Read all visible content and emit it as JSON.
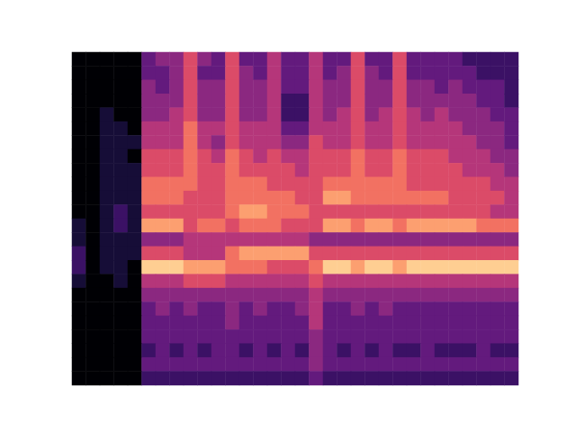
{
  "chart_data": {
    "type": "heatmap",
    "tick_labels": false,
    "grid": false,
    "clim": [
      0,
      10
    ],
    "cells": [
      [
        0,
        0,
        0,
        0,
        0,
        3,
        4,
        4,
        6,
        4,
        3,
        6,
        3,
        3,
        5,
        3,
        3,
        5,
        3,
        3,
        6,
        3,
        3,
        6,
        3,
        3,
        3,
        3,
        2,
        2,
        2,
        2
      ],
      [
        0,
        0,
        0,
        0,
        0,
        3,
        3,
        4,
        6,
        3,
        3,
        6,
        4,
        3,
        5,
        3,
        3,
        5,
        3,
        4,
        6,
        4,
        3,
        6,
        3,
        3,
        3,
        3,
        3,
        2,
        2,
        2
      ],
      [
        0,
        0,
        0,
        0,
        0,
        4,
        3,
        4,
        6,
        4,
        4,
        6,
        4,
        4,
        5,
        3,
        3,
        5,
        4,
        4,
        6,
        4,
        4,
        6,
        4,
        4,
        3,
        4,
        3,
        3,
        3,
        2
      ],
      [
        0,
        0,
        0,
        0,
        0,
        4,
        4,
        4,
        6,
        4,
        4,
        6,
        4,
        4,
        5,
        2,
        2,
        5,
        4,
        4,
        6,
        4,
        4,
        6,
        4,
        4,
        4,
        4,
        4,
        3,
        3,
        2
      ],
      [
        0,
        0,
        1,
        0,
        0,
        4,
        4,
        5,
        6,
        4,
        4,
        6,
        4,
        4,
        5,
        2,
        2,
        5,
        4,
        5,
        6,
        4,
        5,
        6,
        5,
        4,
        5,
        4,
        4,
        4,
        3,
        3
      ],
      [
        0,
        0,
        1,
        1,
        0,
        5,
        5,
        5,
        7,
        5,
        5,
        6,
        5,
        5,
        5,
        3,
        3,
        5,
        5,
        5,
        6,
        5,
        5,
        6,
        5,
        5,
        5,
        5,
        4,
        4,
        4,
        3
      ],
      [
        0,
        0,
        1,
        1,
        1,
        5,
        5,
        5,
        7,
        5,
        4,
        6,
        5,
        5,
        5,
        4,
        4,
        6,
        5,
        5,
        6,
        5,
        5,
        6,
        5,
        5,
        5,
        5,
        5,
        4,
        4,
        3
      ],
      [
        0,
        0,
        1,
        1,
        0,
        6,
        6,
        6,
        7,
        6,
        5,
        7,
        6,
        5,
        6,
        5,
        5,
        6,
        6,
        6,
        7,
        6,
        6,
        7,
        6,
        6,
        6,
        5,
        5,
        5,
        4,
        4
      ],
      [
        0,
        0,
        1,
        1,
        1,
        6,
        6,
        6,
        7,
        6,
        6,
        7,
        6,
        6,
        6,
        6,
        5,
        6,
        6,
        6,
        7,
        6,
        6,
        7,
        6,
        6,
        6,
        6,
        5,
        5,
        5,
        4
      ],
      [
        0,
        0,
        1,
        1,
        1,
        7,
        7,
        7,
        7,
        6,
        6,
        7,
        7,
        7,
        6,
        6,
        6,
        6,
        7,
        7,
        7,
        7,
        7,
        7,
        6,
        6,
        6,
        6,
        6,
        6,
        5,
        5
      ],
      [
        0,
        0,
        1,
        1,
        1,
        7,
        7,
        7,
        6,
        6,
        6,
        7,
        7,
        7,
        7,
        7,
        6,
        6,
        8,
        8,
        7,
        7,
        7,
        7,
        7,
        7,
        7,
        6,
        6,
        6,
        6,
        5
      ],
      [
        0,
        0,
        1,
        2,
        1,
        6,
        6,
        6,
        6,
        6,
        6,
        7,
        8,
        8,
        7,
        7,
        7,
        6,
        6,
        6,
        6,
        6,
        6,
        6,
        6,
        6,
        6,
        6,
        6,
        6,
        5,
        5
      ],
      [
        1,
        0,
        1,
        2,
        1,
        8,
        8,
        8,
        6,
        7,
        7,
        6,
        7,
        7,
        7,
        6,
        6,
        6,
        8,
        8,
        7,
        8,
        8,
        7,
        8,
        8,
        8,
        8,
        8,
        7,
        7,
        7
      ],
      [
        1,
        0,
        1,
        1,
        1,
        4,
        4,
        4,
        5,
        5,
        5,
        5,
        5,
        5,
        5,
        5,
        5,
        4,
        4,
        4,
        4,
        4,
        4,
        4,
        4,
        4,
        4,
        4,
        4,
        4,
        4,
        4
      ],
      [
        2,
        0,
        1,
        1,
        1,
        6,
        6,
        6,
        5,
        5,
        5,
        7,
        8,
        8,
        8,
        8,
        8,
        6,
        6,
        6,
        6,
        6,
        6,
        6,
        6,
        6,
        6,
        6,
        6,
        6,
        6,
        6
      ],
      [
        2,
        0,
        1,
        1,
        0,
        9,
        9,
        9,
        8,
        8,
        8,
        7,
        7,
        7,
        6,
        6,
        6,
        7,
        9,
        9,
        8,
        9,
        9,
        8,
        9,
        9,
        9,
        9,
        9,
        9,
        9,
        9
      ],
      [
        1,
        0,
        0,
        1,
        0,
        5,
        5,
        5,
        6,
        6,
        6,
        5,
        5,
        5,
        5,
        5,
        5,
        6,
        5,
        5,
        5,
        5,
        5,
        5,
        5,
        5,
        5,
        5,
        5,
        5,
        5,
        5
      ],
      [
        0,
        0,
        0,
        0,
        0,
        4,
        4,
        4,
        4,
        4,
        4,
        4,
        4,
        4,
        4,
        4,
        4,
        5,
        4,
        4,
        4,
        4,
        4,
        4,
        4,
        4,
        4,
        4,
        4,
        4,
        4,
        4
      ],
      [
        0,
        0,
        0,
        0,
        0,
        3,
        4,
        3,
        4,
        3,
        3,
        4,
        3,
        4,
        3,
        3,
        4,
        5,
        3,
        3,
        4,
        3,
        4,
        3,
        3,
        3,
        3,
        3,
        3,
        3,
        3,
        3
      ],
      [
        0,
        0,
        0,
        0,
        0,
        3,
        3,
        3,
        3,
        3,
        3,
        4,
        3,
        3,
        3,
        3,
        3,
        5,
        3,
        3,
        3,
        3,
        3,
        3,
        3,
        3,
        3,
        3,
        3,
        3,
        3,
        3
      ],
      [
        0,
        0,
        0,
        0,
        0,
        3,
        3,
        3,
        3,
        3,
        3,
        3,
        3,
        3,
        3,
        3,
        3,
        4,
        3,
        3,
        3,
        3,
        3,
        3,
        3,
        3,
        3,
        3,
        3,
        3,
        3,
        3
      ],
      [
        0,
        0,
        0,
        0,
        0,
        2,
        3,
        2,
        3,
        2,
        3,
        3,
        2,
        3,
        2,
        3,
        2,
        4,
        3,
        2,
        3,
        2,
        3,
        2,
        2,
        3,
        2,
        2,
        2,
        3,
        2,
        2
      ],
      [
        0,
        0,
        0,
        0,
        0,
        3,
        3,
        3,
        3,
        3,
        3,
        3,
        3,
        3,
        3,
        3,
        3,
        4,
        3,
        3,
        3,
        3,
        3,
        3,
        3,
        3,
        3,
        3,
        3,
        3,
        3,
        3
      ],
      [
        0,
        0,
        0,
        0,
        0,
        2,
        2,
        2,
        2,
        2,
        2,
        2,
        2,
        2,
        2,
        2,
        2,
        3,
        2,
        2,
        2,
        2,
        2,
        2,
        2,
        2,
        2,
        2,
        2,
        2,
        2,
        2
      ]
    ]
  }
}
